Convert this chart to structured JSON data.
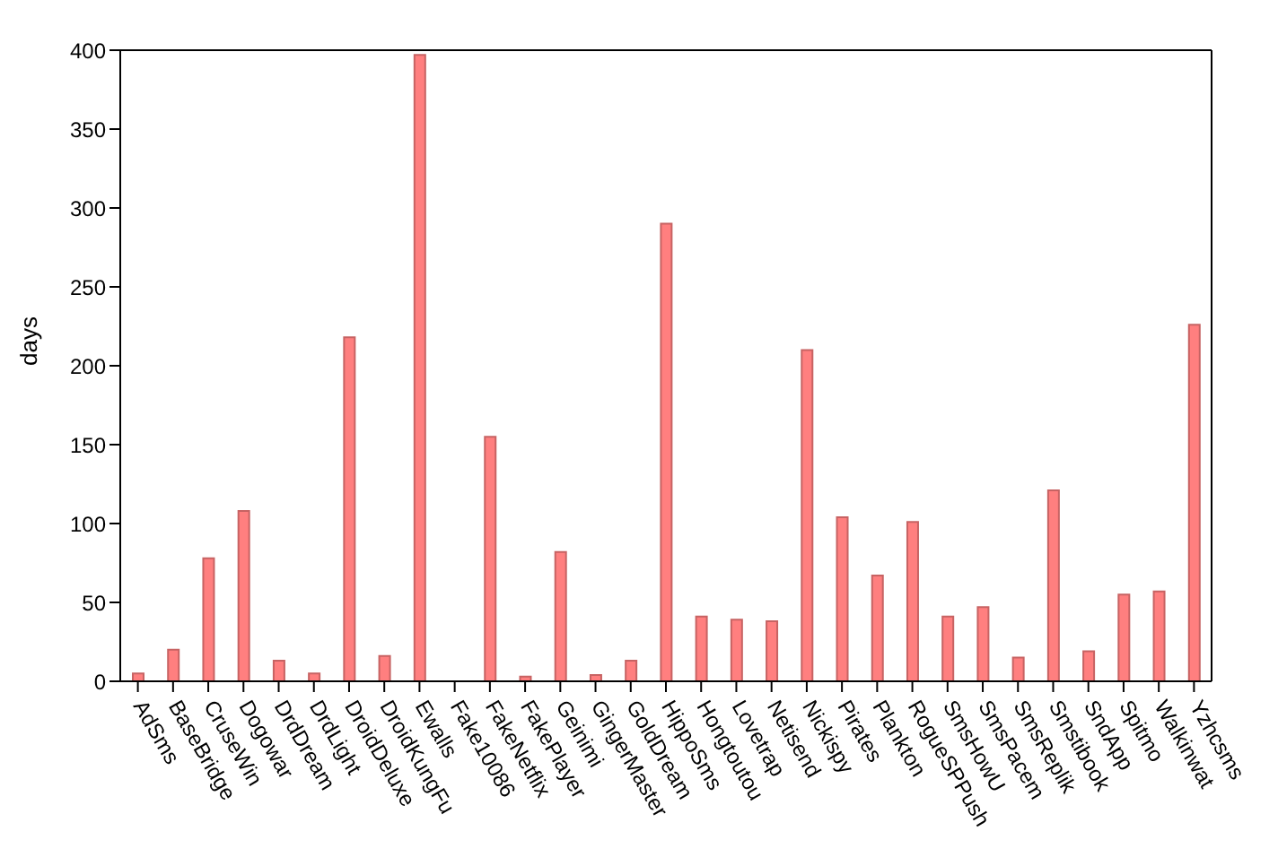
{
  "chart_data": {
    "type": "bar",
    "ylabel": "days",
    "categories": [
      "AdSms",
      "BaseBridge",
      "CruseWin",
      "Dogowar",
      "DrdDream",
      "DrdLight",
      "DroidDeluxe",
      "DroidKungFu",
      "Ewalls",
      "Fake10086",
      "FakeNetflix",
      "FakePlayer",
      "Geinimi",
      "GingerMaster",
      "GoldDream",
      "HippoSms",
      "Hongtoutou",
      "Lovetrap",
      "Netisend",
      "Nickispy",
      "Pirates",
      "Plankton",
      "RogueSPPush",
      "SmsHowU",
      "SmsPacem",
      "SmsReplik",
      "Smstibook",
      "SndApp",
      "Spitmo",
      "Walkinwat",
      "Yzhcsms"
    ],
    "values": [
      5,
      20,
      78,
      108,
      13,
      5,
      218,
      16,
      397,
      0,
      155,
      3,
      82,
      4,
      13,
      290,
      41,
      39,
      38,
      210,
      104,
      67,
      101,
      41,
      47,
      15,
      121,
      19,
      55,
      57,
      226
    ],
    "color": "#ff7f7f",
    "ylim": [
      0,
      400
    ],
    "yticks": [
      0,
      50,
      100,
      150,
      200,
      250,
      300,
      350,
      400
    ],
    "grid": false
  }
}
